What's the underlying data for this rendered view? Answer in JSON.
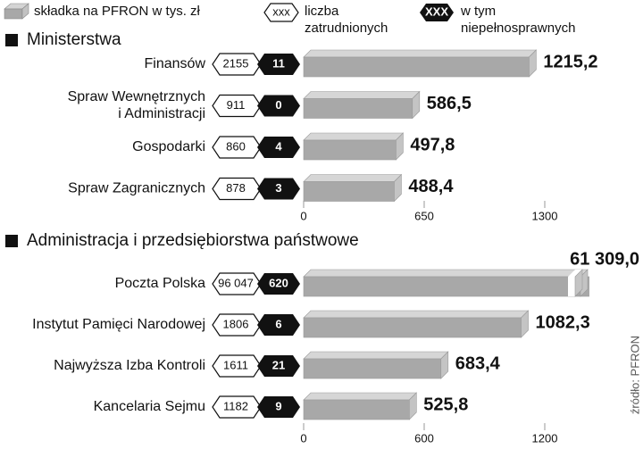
{
  "legend": {
    "contribution": "składka na PFRON w tys. zł",
    "employees_symbol": "xxx",
    "employees": "liczba\nzatrudnionych",
    "disabled_symbol": "XXX",
    "disabled": "w tym\nniepełnosprawnych"
  },
  "source": "źródło: PFRON",
  "chart_data": [
    {
      "type": "bar",
      "orientation": "horizontal",
      "title": "Ministerstwa",
      "categories": [
        "Finansów",
        "Spraw Wewnętrznych\ni Administracji",
        "Gospodarki",
        "Spraw Zagranicznych"
      ],
      "values": [
        1215.2,
        586.5,
        497.8,
        488.4
      ],
      "value_labels": [
        "1215,2",
        "586,5",
        "497,8",
        "488,4"
      ],
      "employees": [
        2155,
        911,
        860,
        878
      ],
      "disabled": [
        11,
        0,
        4,
        3
      ],
      "color": "#a8a8a8",
      "xlim": [
        0,
        1300
      ],
      "xticks": [
        0,
        650,
        1300
      ]
    },
    {
      "type": "bar",
      "orientation": "horizontal",
      "title": "Administracja i przedsiębiorstwa państwowe",
      "categories": [
        "Poczta Polska",
        "Instytut Pamięci Narodowej",
        "Najwyższa Izba Kontroli",
        "Kancelaria Sejmu"
      ],
      "values": [
        61309.0,
        1082.3,
        683.4,
        525.8
      ],
      "value_labels": [
        "61 309,0",
        "1082,3",
        "683,4",
        "525,8"
      ],
      "employees": [
        96047,
        1806,
        1611,
        1182
      ],
      "employees_labels": [
        "96 047",
        "1806",
        "1611",
        "1182"
      ],
      "disabled": [
        620,
        6,
        21,
        9
      ],
      "color": "#a8a8a8",
      "xlim": [
        0,
        1200
      ],
      "xticks": [
        0,
        600,
        1200
      ]
    }
  ]
}
